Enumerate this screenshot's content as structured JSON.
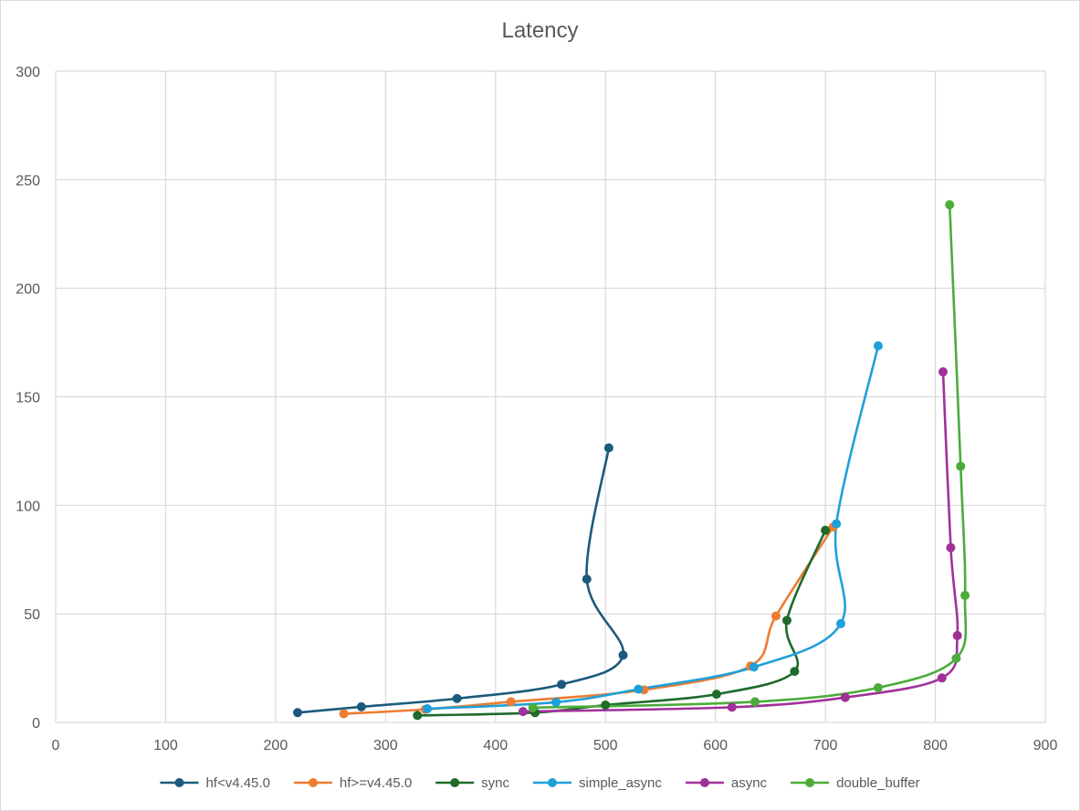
{
  "chart_data": {
    "type": "scatter",
    "title": "Latency",
    "xlabel": "",
    "ylabel": "",
    "xlim": [
      0,
      900
    ],
    "ylim": [
      0,
      300
    ],
    "xticks": [
      0,
      100,
      200,
      300,
      400,
      500,
      600,
      700,
      800,
      900
    ],
    "yticks": [
      0,
      50,
      100,
      150,
      200,
      250,
      300
    ],
    "grid": true,
    "legend_position": "bottom",
    "smooth_lines": true,
    "series": [
      {
        "name": "hf<v4.45.0",
        "color": "#1b5a7c",
        "points": [
          [
            220,
            4.5
          ],
          [
            278,
            7.2
          ],
          [
            365,
            11
          ],
          [
            460,
            17.5
          ],
          [
            516,
            31
          ],
          [
            483,
            66
          ],
          [
            503,
            126.5
          ]
        ]
      },
      {
        "name": "hf>=v4.45.0",
        "color": "#ed7d31",
        "points": [
          [
            262,
            4
          ],
          [
            336,
            6
          ],
          [
            414,
            9.5
          ],
          [
            535,
            15
          ],
          [
            632,
            26
          ],
          [
            655,
            49
          ],
          [
            707,
            90
          ]
        ]
      },
      {
        "name": "sync",
        "color": "#1e6b2a",
        "points": [
          [
            329,
            3.2
          ],
          [
            436,
            4.5
          ],
          [
            500,
            8
          ],
          [
            601,
            13
          ],
          [
            672,
            23.5
          ],
          [
            665,
            47
          ],
          [
            700,
            88.5
          ]
        ]
      },
      {
        "name": "simple_async",
        "color": "#1fa0d8",
        "points": [
          [
            338,
            6.3
          ],
          [
            455,
            9.3
          ],
          [
            530,
            15.3
          ],
          [
            635,
            25.5
          ],
          [
            714,
            45.5
          ],
          [
            710,
            91.5
          ],
          [
            748,
            173.5
          ]
        ]
      },
      {
        "name": "async",
        "color": "#a0319a",
        "points": [
          [
            425,
            5
          ],
          [
            615,
            7
          ],
          [
            718,
            11.5
          ],
          [
            806,
            20.5
          ],
          [
            820,
            40
          ],
          [
            814,
            80.5
          ],
          [
            807,
            161.5
          ]
        ]
      },
      {
        "name": "double_buffer",
        "color": "#4cac3a",
        "points": [
          [
            434,
            6.8
          ],
          [
            636,
            9.5
          ],
          [
            748,
            16
          ],
          [
            819,
            29.5
          ],
          [
            827,
            58.5
          ],
          [
            823,
            118
          ],
          [
            813,
            238.5
          ]
        ]
      }
    ]
  }
}
